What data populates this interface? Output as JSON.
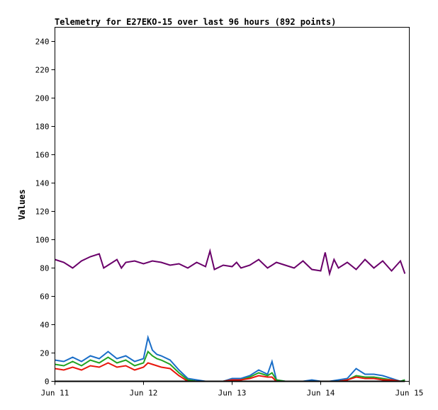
{
  "chart_data": {
    "type": "line",
    "title": "Telemetry for E27EKO-15 over last 96 hours (892 points)",
    "xlabel": "",
    "ylabel": "Values",
    "xlim": [
      "Jun 11",
      "Jun 15"
    ],
    "ylim": [
      0,
      250
    ],
    "x_ticks": [
      "Jun 11",
      "Jun 12",
      "Jun 13",
      "Jun 14",
      "Jun 15"
    ],
    "y_ticks": [
      0,
      20,
      40,
      60,
      80,
      100,
      120,
      140,
      160,
      180,
      200,
      220,
      240
    ],
    "grid": false,
    "legend": "none",
    "series": [
      {
        "color": "#6a006a",
        "x": [
          0,
          0.1,
          0.15,
          0.2,
          0.3,
          0.4,
          0.5,
          0.55,
          0.6,
          0.7,
          0.75,
          0.8,
          0.9,
          1.0,
          1.1,
          1.2,
          1.3,
          1.4,
          1.5,
          1.6,
          1.7,
          1.75,
          1.8,
          1.9,
          2.0,
          2.05,
          2.1,
          2.2,
          2.3,
          2.4,
          2.5,
          2.6,
          2.7,
          2.8,
          2.9,
          3.0,
          3.05,
          3.1,
          3.15,
          3.2,
          3.3,
          3.4,
          3.5,
          3.6,
          3.7,
          3.8,
          3.9,
          3.95
        ],
        "values": [
          86,
          84,
          82,
          80,
          85,
          88,
          90,
          80,
          82,
          86,
          80,
          84,
          85,
          83,
          85,
          84,
          82,
          83,
          80,
          84,
          81,
          92,
          79,
          82,
          81,
          84,
          80,
          82,
          86,
          80,
          84,
          82,
          80,
          85,
          79,
          78,
          91,
          76,
          86,
          80,
          84,
          79,
          86,
          80,
          85,
          78,
          85,
          76
        ]
      },
      {
        "color": "#1a6ec8",
        "x": [
          0,
          0.1,
          0.2,
          0.3,
          0.4,
          0.5,
          0.6,
          0.7,
          0.8,
          0.9,
          1.0,
          1.05,
          1.1,
          1.15,
          1.2,
          1.3,
          1.4,
          1.5,
          1.6,
          1.7,
          1.8,
          1.9,
          2.0,
          2.1,
          2.2,
          2.3,
          2.4,
          2.45,
          2.5,
          2.6,
          2.7,
          2.8,
          2.9,
          3.0,
          3.1,
          3.2,
          3.3,
          3.4,
          3.5,
          3.6,
          3.7,
          3.8,
          3.9,
          3.95
        ],
        "values": [
          15,
          14,
          17,
          14,
          18,
          16,
          21,
          16,
          18,
          14,
          16,
          31,
          22,
          19,
          18,
          15,
          8,
          2,
          1,
          0,
          0,
          0,
          2,
          2,
          4,
          8,
          5,
          14,
          1,
          0,
          0,
          0,
          1,
          0,
          0,
          1,
          2,
          9,
          5,
          5,
          4,
          2,
          0,
          1
        ]
      },
      {
        "color": "#22a322",
        "x": [
          0,
          0.1,
          0.2,
          0.3,
          0.4,
          0.5,
          0.6,
          0.7,
          0.8,
          0.9,
          1.0,
          1.05,
          1.1,
          1.15,
          1.2,
          1.3,
          1.4,
          1.5,
          1.6,
          1.7,
          1.8,
          1.9,
          2.0,
          2.1,
          2.2,
          2.3,
          2.4,
          2.45,
          2.5,
          2.6,
          2.7,
          2.8,
          2.9,
          3.0,
          3.1,
          3.2,
          3.3,
          3.4,
          3.5,
          3.6,
          3.7,
          3.8,
          3.9,
          3.95
        ],
        "values": [
          12,
          11,
          14,
          11,
          15,
          13,
          17,
          13,
          15,
          11,
          13,
          21,
          18,
          16,
          15,
          12,
          6,
          1,
          0,
          0,
          0,
          0,
          1,
          1,
          3,
          6,
          4,
          6,
          1,
          0,
          0,
          0,
          0,
          0,
          0,
          0,
          1,
          4,
          3,
          3,
          2,
          1,
          0,
          1
        ]
      },
      {
        "color": "#e8160c",
        "x": [
          0,
          0.1,
          0.2,
          0.3,
          0.4,
          0.5,
          0.6,
          0.7,
          0.8,
          0.9,
          1.0,
          1.05,
          1.1,
          1.15,
          1.2,
          1.3,
          1.4,
          1.5,
          1.6,
          1.7,
          1.8,
          1.9,
          2.0,
          2.1,
          2.2,
          2.3,
          2.4,
          2.45,
          2.5,
          2.6,
          2.7,
          2.8,
          2.9,
          3.0,
          3.1,
          3.2,
          3.3,
          3.4,
          3.5,
          3.6,
          3.7,
          3.8,
          3.9,
          3.95
        ],
        "values": [
          9,
          8,
          10,
          8,
          11,
          10,
          13,
          10,
          11,
          8,
          10,
          13,
          12,
          11,
          10,
          9,
          4,
          0,
          0,
          0,
          0,
          0,
          1,
          1,
          2,
          4,
          3,
          3,
          0,
          0,
          0,
          0,
          0,
          0,
          0,
          0,
          1,
          3,
          2,
          2,
          1,
          1,
          0,
          0
        ]
      },
      {
        "color": "#000000",
        "x": [
          0,
          3.95
        ],
        "values": [
          0,
          0
        ]
      }
    ]
  }
}
